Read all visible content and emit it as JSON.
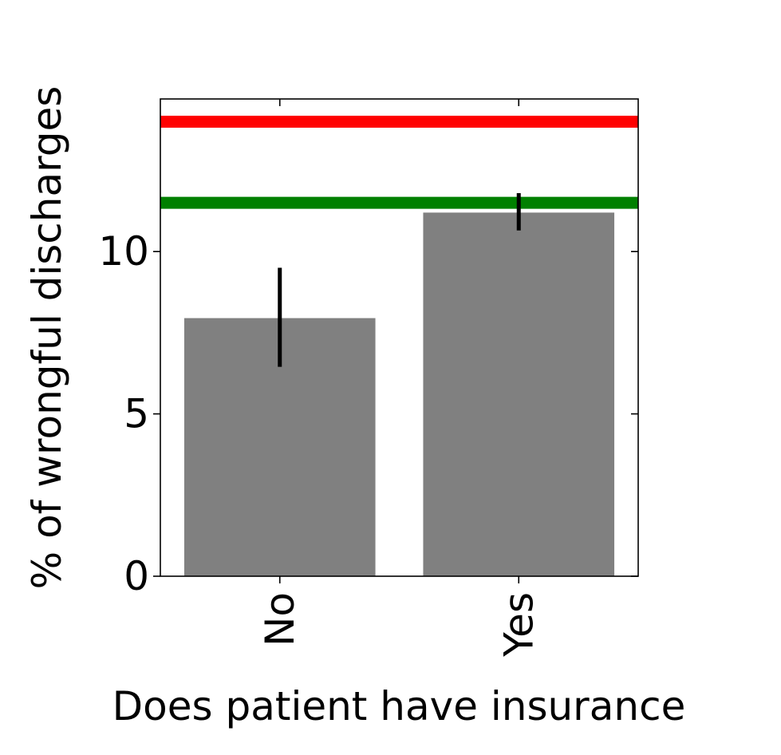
{
  "chart_data": {
    "type": "bar",
    "title": "",
    "xlabel": "Does patient have insurance",
    "ylabel": "% of wrongful discharges",
    "categories": [
      "No",
      "Yes"
    ],
    "values": [
      7.95,
      11.2
    ],
    "error_bars": [
      {
        "low": 6.45,
        "high": 9.5
      },
      {
        "low": 10.65,
        "high": 11.8
      }
    ],
    "reference_lines": [
      {
        "value": 14.0,
        "color": "#ff0000"
      },
      {
        "value": 11.5,
        "color": "#008000"
      }
    ],
    "ylim": [
      0,
      14.7
    ],
    "yticks": [
      0,
      5,
      10
    ],
    "ytick_labels": [
      "0",
      "5",
      "10"
    ],
    "bar_color": "#808080",
    "error_color": "#000000",
    "grid": false
  }
}
